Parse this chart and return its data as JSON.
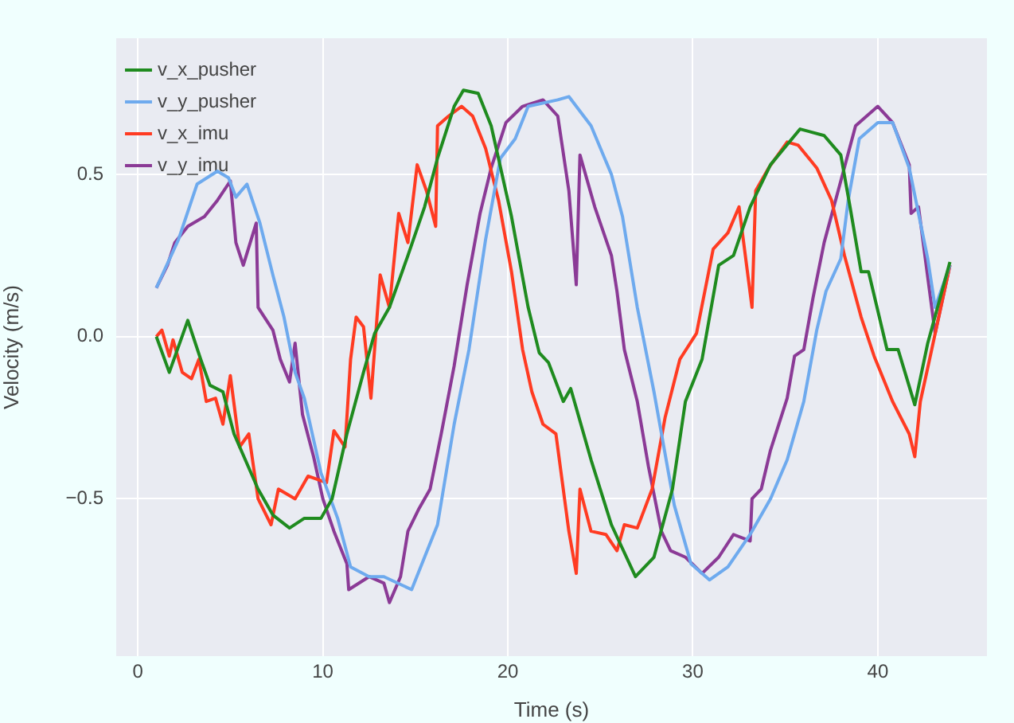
{
  "chart_data": {
    "type": "line",
    "xlabel": "Time (s)",
    "ylabel": "Velocity (m/s)",
    "xlim": [
      -1.17,
      45.9
    ],
    "ylim": [
      -0.985,
      0.92
    ],
    "xticks": [
      0,
      10,
      20,
      30,
      40
    ],
    "yticks": [
      {
        "value": -0.5,
        "label": "−0.5"
      },
      {
        "value": 0,
        "label": "0.0"
      },
      0.5
    ],
    "grid": true,
    "legend": "top left",
    "marker": "none",
    "line_style": "solid",
    "series": [
      {
        "name": "v_x_pusher",
        "color": "#1f8b1f",
        "x": [
          1.0,
          1.7,
          2.7,
          3.4,
          3.9,
          4.6,
          5.2,
          6.5,
          7.3,
          8.2,
          9.0,
          9.9,
          10.5,
          11.3,
          12.2,
          12.8,
          13.6,
          14.6,
          15.5,
          16.2,
          17.1,
          17.6,
          18.4,
          19.1,
          20.2,
          21.1,
          21.7,
          22.2,
          23.0,
          23.4,
          24.5,
          25.6,
          26.9,
          27.9,
          28.9,
          29.6,
          30.5,
          31.4,
          32.2,
          33.1,
          34.2,
          35.8,
          37.1,
          38.0,
          38.5,
          39.1,
          39.5,
          40.5,
          41.1,
          42.0,
          42.7,
          43.9
        ],
        "values": [
          0,
          -0.11,
          0.05,
          -0.07,
          -0.15,
          -0.17,
          -0.3,
          -0.47,
          -0.55,
          -0.59,
          -0.56,
          -0.56,
          -0.5,
          -0.3,
          -0.11,
          0.01,
          0.09,
          0.25,
          0.4,
          0.55,
          0.71,
          0.76,
          0.75,
          0.65,
          0.37,
          0.09,
          -0.05,
          -0.08,
          -0.2,
          -0.16,
          -0.38,
          -0.58,
          -0.74,
          -0.68,
          -0.47,
          -0.2,
          -0.07,
          0.22,
          0.25,
          0.4,
          0.53,
          0.64,
          0.62,
          0.56,
          0.4,
          0.2,
          0.2,
          -0.04,
          -0.04,
          -0.21,
          -0.02,
          0.23
        ]
      },
      {
        "name": "v_y_pusher",
        "color": "#6eaaee",
        "x": [
          1.0,
          2.2,
          3.2,
          4.3,
          4.9,
          5.3,
          5.9,
          6.6,
          7.3,
          7.9,
          8.5,
          9.0,
          9.9,
          10.8,
          11.5,
          12.5,
          13.3,
          14.8,
          15.5,
          16.2,
          17.1,
          17.9,
          18.8,
          19.6,
          20.4,
          21.1,
          22.7,
          23.3,
          24.5,
          25.6,
          26.2,
          27.0,
          27.9,
          29.0,
          29.9,
          30.9,
          31.9,
          33.1,
          34.2,
          35.1,
          36.0,
          36.7,
          37.2,
          38.0,
          38.4,
          39.0,
          40.0,
          40.8,
          41.7,
          42.7,
          43.1,
          43.9
        ],
        "values": [
          0.15,
          0.3,
          0.47,
          0.51,
          0.49,
          0.43,
          0.47,
          0.35,
          0.19,
          0.06,
          -0.11,
          -0.19,
          -0.42,
          -0.56,
          -0.71,
          -0.74,
          -0.74,
          -0.78,
          -0.68,
          -0.58,
          -0.27,
          -0.04,
          0.3,
          0.55,
          0.61,
          0.71,
          0.73,
          0.74,
          0.65,
          0.5,
          0.37,
          0.09,
          -0.17,
          -0.52,
          -0.7,
          -0.75,
          -0.71,
          -0.61,
          -0.5,
          -0.38,
          -0.2,
          0.02,
          0.14,
          0.24,
          0.42,
          0.61,
          0.66,
          0.66,
          0.52,
          0.24,
          0.09,
          0.22
        ]
      },
      {
        "name": "v_x_imu",
        "color": "#ff3b22",
        "x": [
          1.0,
          1.3,
          1.7,
          1.9,
          2.4,
          2.9,
          3.3,
          3.7,
          4.2,
          4.6,
          5.0,
          5.5,
          6.0,
          6.5,
          7.2,
          7.6,
          8.5,
          9.2,
          10.2,
          10.6,
          11.2,
          11.5,
          11.8,
          12.2,
          12.6,
          13.1,
          13.6,
          14.1,
          14.6,
          15.1,
          15.6,
          16.1,
          16.2,
          16.8,
          17.5,
          18.1,
          18.8,
          19.5,
          20.2,
          20.8,
          21.3,
          21.9,
          22.6,
          23.3,
          23.7,
          23.9,
          24.5,
          25.3,
          25.9,
          26.3,
          27.0,
          27.8,
          28.5,
          29.3,
          30.2,
          31.1,
          31.9,
          32.5,
          33.2,
          33.4,
          34.1,
          35.1,
          35.7,
          36.7,
          37.5,
          38.2,
          39.1,
          39.8,
          40.8,
          41.7,
          42.0,
          42.3,
          42.8,
          43.9
        ],
        "values": [
          0,
          0.02,
          -0.06,
          -0.01,
          -0.11,
          -0.13,
          -0.07,
          -0.2,
          -0.19,
          -0.27,
          -0.12,
          -0.34,
          -0.3,
          -0.5,
          -0.58,
          -0.47,
          -0.5,
          -0.43,
          -0.45,
          -0.29,
          -0.34,
          -0.07,
          0.06,
          0.03,
          -0.19,
          0.19,
          0.09,
          0.38,
          0.29,
          0.53,
          0.45,
          0.34,
          0.65,
          0.68,
          0.71,
          0.68,
          0.58,
          0.42,
          0.2,
          -0.04,
          -0.17,
          -0.27,
          -0.3,
          -0.6,
          -0.73,
          -0.47,
          -0.6,
          -0.61,
          -0.66,
          -0.58,
          -0.59,
          -0.47,
          -0.25,
          -0.07,
          0.01,
          0.27,
          0.32,
          0.4,
          0.09,
          0.45,
          0.52,
          0.6,
          0.59,
          0.52,
          0.42,
          0.25,
          0.06,
          -0.06,
          -0.2,
          -0.3,
          -0.37,
          -0.2,
          -0.07,
          0.22
        ]
      },
      {
        "name": "v_y_imu",
        "color": "#8b3a96",
        "x": [
          1.0,
          1.6,
          2.0,
          2.7,
          3.6,
          4.3,
          5.0,
          5.3,
          5.7,
          6.4,
          6.5,
          7.3,
          7.7,
          8.2,
          8.5,
          8.9,
          9.5,
          10.0,
          10.6,
          11.3,
          11.4,
          12.5,
          13.3,
          13.6,
          14.2,
          14.6,
          15.2,
          15.8,
          16.4,
          17.1,
          17.8,
          18.5,
          19.1,
          19.9,
          20.8,
          21.9,
          22.7,
          23.3,
          23.7,
          23.9,
          24.7,
          25.6,
          25.9,
          26.3,
          27.0,
          27.6,
          28.3,
          28.8,
          29.6,
          30.5,
          31.4,
          32.2,
          33.1,
          33.2,
          33.7,
          34.2,
          35.1,
          35.5,
          36.0,
          36.5,
          37.1,
          38.0,
          38.8,
          40.0,
          40.8,
          41.7,
          41.8,
          42.2,
          42.8,
          43.1,
          43.9
        ],
        "values": [
          0.15,
          0.22,
          0.29,
          0.34,
          0.37,
          0.42,
          0.48,
          0.29,
          0.22,
          0.35,
          0.09,
          0.02,
          -0.07,
          -0.14,
          -0.02,
          -0.24,
          -0.37,
          -0.5,
          -0.6,
          -0.7,
          -0.78,
          -0.74,
          -0.76,
          -0.82,
          -0.74,
          -0.6,
          -0.53,
          -0.47,
          -0.3,
          -0.09,
          0.16,
          0.38,
          0.52,
          0.66,
          0.71,
          0.73,
          0.68,
          0.45,
          0.16,
          0.56,
          0.4,
          0.25,
          0.14,
          -0.04,
          -0.2,
          -0.4,
          -0.6,
          -0.66,
          -0.68,
          -0.73,
          -0.68,
          -0.61,
          -0.63,
          -0.5,
          -0.47,
          -0.35,
          -0.19,
          -0.06,
          -0.04,
          0.12,
          0.29,
          0.48,
          0.65,
          0.71,
          0.66,
          0.53,
          0.38,
          0.4,
          0.14,
          0.01,
          0.22
        ]
      }
    ]
  }
}
